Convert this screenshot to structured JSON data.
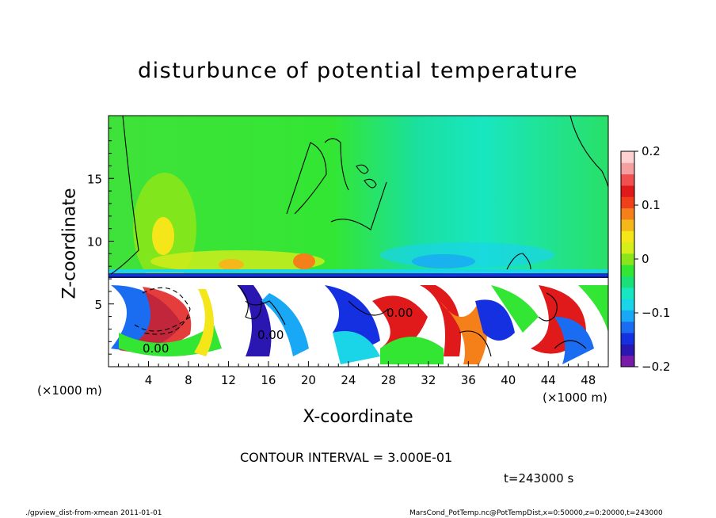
{
  "chart_data": {
    "type": "heatmap",
    "title": "disturbunce of potential temperature",
    "xlabel": "X-coordinate",
    "ylabel": "Z-coordinate",
    "x_unit": "(×1000 m)",
    "y_unit": "(×1000 m)",
    "xlim": [
      0,
      50
    ],
    "ylim": [
      0,
      20
    ],
    "x_ticks": [
      4,
      8,
      12,
      16,
      20,
      24,
      28,
      32,
      36,
      40,
      44,
      48
    ],
    "y_ticks": [
      5,
      10,
      15
    ],
    "colorbar": {
      "ticks": [
        0.2,
        0.1,
        0,
        -0.1,
        -0.2
      ],
      "tick_labels": [
        "0.2",
        "0.1",
        "0",
        "−0.1",
        "−0.2"
      ],
      "range": [
        -0.2,
        0.2
      ],
      "colors": [
        "#7a1aa8",
        "#2a16b0",
        "#1530e0",
        "#1a6cf0",
        "#19a8f5",
        "#1ad4e8",
        "#18e6c0",
        "#1ae078",
        "#33e633",
        "#8ae61a",
        "#d6ee1a",
        "#f5e61a",
        "#f5b81a",
        "#f5801a",
        "#f0401a",
        "#e01a1a",
        "#f05050",
        "#f5a0a0",
        "#ffd0d0"
      ]
    },
    "contour_labels": [
      "0.00",
      "0.00",
      "0.00"
    ],
    "contour_interval": "CONTOUR INTERVAL = 3.000E-01",
    "time": "t=243000 s"
  },
  "footer": {
    "left": "./gpview_dist-from-xmean   2011-01-01",
    "right": "MarsCond_PotTemp.nc@PotTempDist,x=0:50000,z=0:20000,t=243000"
  }
}
